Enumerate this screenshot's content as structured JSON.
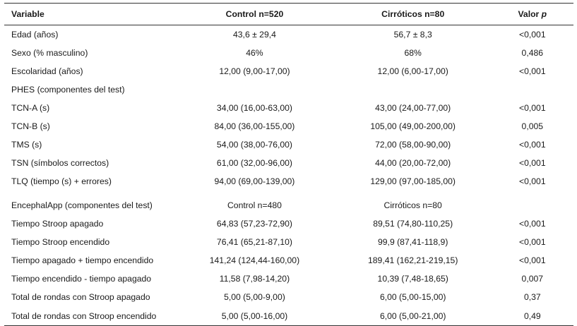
{
  "header": {
    "variable": "Variable",
    "control": "Control n=520",
    "cirroticos": "Cirróticos n=80",
    "valor": "Valor",
    "valor_p": "p"
  },
  "rows": [
    {
      "variable": "Edad (años)",
      "control": "43,6 ± 29,4",
      "cirroticos": "56,7 ± 8,3",
      "p": "<0,001"
    },
    {
      "variable": "Sexo (% masculino)",
      "control": "46%",
      "cirroticos": "68%",
      "p": "0,486"
    },
    {
      "variable": "Escolaridad (años)",
      "control": "12,00 (9,00-17,00)",
      "cirroticos": "12,00 (6,00-17,00)",
      "p": "<0,001"
    },
    {
      "variable": "PHES (componentes del test)",
      "control": "",
      "cirroticos": "",
      "p": ""
    },
    {
      "variable": "TCN-A (s)",
      "control": "34,00 (16,00-63,00)",
      "cirroticos": "43,00 (24,00-77,00)",
      "p": "<0,001"
    },
    {
      "variable": "TCN-B (s)",
      "control": "84,00 (36,00-155,00)",
      "cirroticos": "105,00 (49,00-200,00)",
      "p": "0,005"
    },
    {
      "variable": "TMS (s)",
      "control": "54,00 (38,00-76,00)",
      "cirroticos": "72,00 (58,00-90,00)",
      "p": "<0,001"
    },
    {
      "variable": "TSN (símbolos correctos)",
      "control": "61,00 (32,00-96,00)",
      "cirroticos": "44,00 (20,00-72,00)",
      "p": "<0,001"
    },
    {
      "variable": "TLQ (tiempo (s) + errores)",
      "control": "94,00 (69,00-139,00)",
      "cirroticos": "129,00 (97,00-185,00)",
      "p": "<0,001"
    },
    {
      "variable": "EncephalApp (componentes del test)",
      "control": "Control n=480",
      "cirroticos": "Cirróticos n=80",
      "p": ""
    },
    {
      "variable": "Tiempo Stroop apagado",
      "control": "64,83 (57,23-72,90)",
      "cirroticos": "89,51 (74,80-110,25)",
      "p": "<0,001"
    },
    {
      "variable": "Tiempo Stroop encendido",
      "control": "76,41 (65,21-87,10)",
      "cirroticos": "99,9 (87,41-118,9)",
      "p": "<0,001"
    },
    {
      "variable": "Tiempo apagado + tiempo encendido",
      "control": "141,24 (124,44-160,00)",
      "cirroticos": "189,41 (162,21-219,15)",
      "p": "<0,001"
    },
    {
      "variable": "Tiempo encendido - tiempo apagado",
      "control": "11,58 (7,98-14,20)",
      "cirroticos": "10,39 (7,48-18,65)",
      "p": "0,007"
    },
    {
      "variable": "Total de rondas con Stroop apagado",
      "control": "5,00 (5,00-9,00)",
      "cirroticos": "6,00 (5,00-15,00)",
      "p": "0,37"
    },
    {
      "variable": "Total de rondas con Stroop encendido",
      "control": "5,00 (5,00-16,00)",
      "cirroticos": "6,00 (5,00-21,00)",
      "p": "0,49"
    }
  ]
}
